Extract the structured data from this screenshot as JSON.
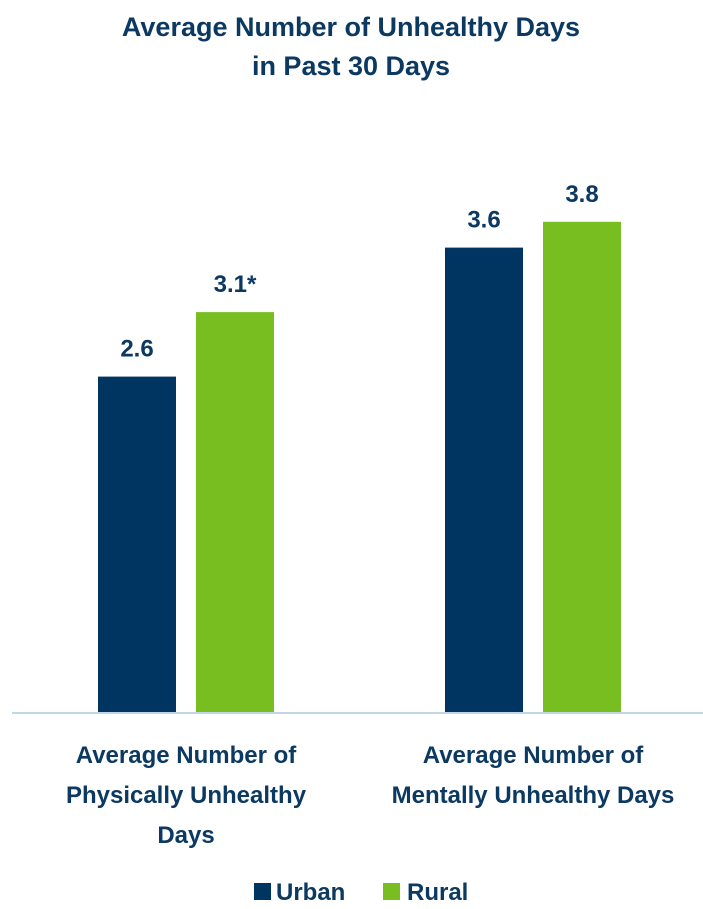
{
  "chart_data": {
    "type": "bar",
    "title_lines": [
      "Average Number of Unhealthy Days",
      "in Past 30 Days"
    ],
    "categories": [
      [
        "Average Number of",
        "Physically Unhealthy",
        "Days"
      ],
      [
        "Average Number of",
        "Mentally Unhealthy Days"
      ]
    ],
    "series": [
      {
        "name": "Urban",
        "values": [
          2.6,
          3.6
        ],
        "labels": [
          "2.6",
          "3.6"
        ],
        "color": "#003461"
      },
      {
        "name": "Rural",
        "values": [
          3.1,
          3.8
        ],
        "labels": [
          "3.1*",
          "3.8"
        ],
        "color": "#78BE20"
      }
    ],
    "ylim": [
      0,
      4.5
    ],
    "grid": false,
    "legend_position": "bottom",
    "colors": {
      "text": "#0B3961",
      "axis": "#BFD8E8"
    }
  }
}
